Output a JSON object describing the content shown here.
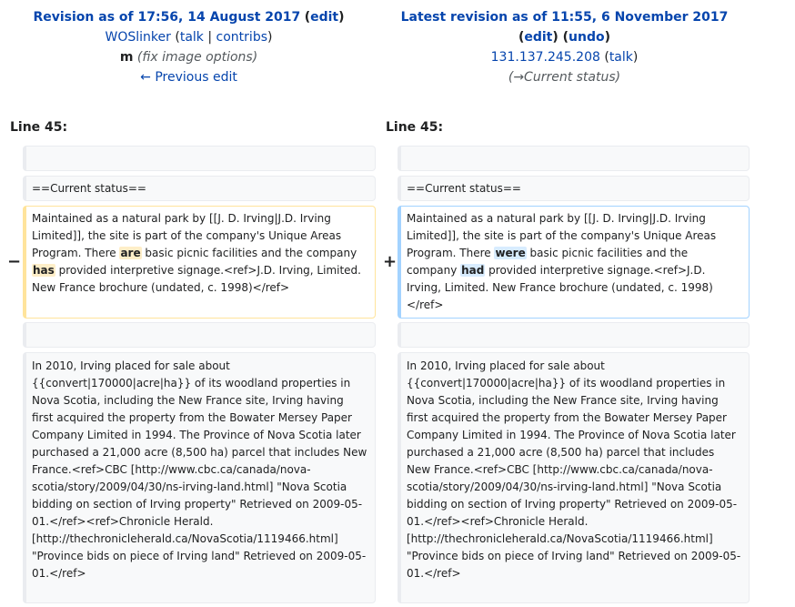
{
  "left_header": {
    "title": "Revision as of 17:56, 14 August 2017",
    "edit_label": "edit",
    "user": "WOSlinker",
    "talk": "talk",
    "contribs": "contribs",
    "minor_flag": "m",
    "summary": "(fix image options)",
    "prev_link": "← Previous edit"
  },
  "right_header": {
    "title": "Latest revision as of 11:55, 6 November 2017",
    "edit_label": "edit",
    "undo_label": "undo",
    "user": "131.137.245.208",
    "talk": "talk",
    "summary": "(→Current status)"
  },
  "line_left": "Line 45:",
  "line_right": "Line 45:",
  "rows": {
    "heading": "==Current status==",
    "del_marker": "−",
    "add_marker": "+",
    "del": {
      "p1": "Maintained as a natural park by [[J. D. Irving|J.D. Irving Limited]], the site is part of the company's Unique Areas Program. There ",
      "w1": "are",
      "p2": " basic picnic facilities and the company ",
      "w2": "has",
      "p3": " provided interpretive signage.<ref>J.D. Irving, Limited. New France brochure (undated, c. 1998)</ref>"
    },
    "add": {
      "p1": "Maintained as a natural park by [[J. D. Irving|J.D. Irving Limited]], the site is part of the company's Unique Areas Program. There ",
      "w1": "were",
      "p2": " basic picnic facilities and the company ",
      "w2": "had",
      "p3": " provided interpretive signage.<ref>J.D. Irving, Limited. New France brochure (undated, c. 1998) </ref>"
    },
    "context": "In 2010, Irving placed for sale about {{convert|170000|acre|ha}} of its woodland properties in Nova Scotia, including the New France site, Irving having first acquired the property from the Bowater Mersey Paper Company Limited in 1994. The Province of Nova Scotia later purchased a 21,000 acre (8,500 ha) parcel that includes New France.<ref>CBC [http://www.cbc.ca/canada/nova-scotia/story/2009/04/30/ns-irving-land.html] \"Nova Scotia bidding on section of Irving property\" Retrieved on 2009-05-01.</ref><ref>Chronicle Herald. [http://thechronicleherald.ca/NovaScotia/1119466.html] \"Province bids on piece of Irving land\" Retrieved on 2009-05-01.</ref>"
  }
}
